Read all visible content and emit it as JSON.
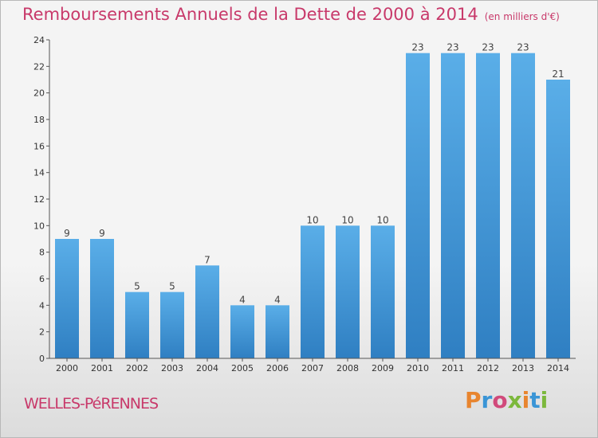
{
  "header": {
    "title": "Remboursements Annuels de la Dette de 2000 à 2014",
    "subtitle": "(en milliers d'€)"
  },
  "footer": {
    "commune": "WELLES-PéRENNES",
    "logo_text": "Proxiti",
    "logo_colors": [
      "#e8852f",
      "#3a95d6",
      "#d14a7b",
      "#7cb83c",
      "#e8852f",
      "#3a95d6",
      "#7cb83c"
    ]
  },
  "chart_data": {
    "type": "bar",
    "title": "Remboursements Annuels de la Dette de 2000 à 2014",
    "subtitle": "(en milliers d'€)",
    "xlabel": "",
    "ylabel": "",
    "categories": [
      "2000",
      "2001",
      "2002",
      "2003",
      "2004",
      "2005",
      "2006",
      "2007",
      "2008",
      "2009",
      "2010",
      "2011",
      "2012",
      "2013",
      "2014"
    ],
    "values": [
      9,
      9,
      5,
      5,
      7,
      4,
      4,
      10,
      10,
      10,
      23,
      23,
      23,
      23,
      21
    ],
    "ylim": [
      0,
      24
    ],
    "yticks": [
      0,
      2,
      4,
      6,
      8,
      10,
      12,
      14,
      16,
      18,
      20,
      22,
      24
    ],
    "grid": false,
    "legend": "none",
    "bar_color_top": "#5aaee8",
    "bar_color_bottom": "#2f7fc2",
    "axis_color": "#555555"
  }
}
